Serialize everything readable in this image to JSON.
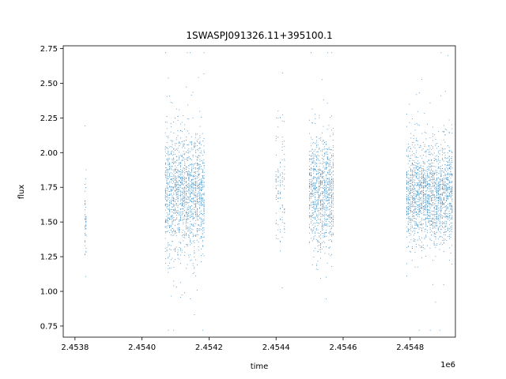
{
  "chart_data": {
    "type": "scatter",
    "title": "1SWASPJ091326.11+395100.1",
    "xlabel": "time",
    "ylabel": "flux",
    "x_offset_label": "1e6",
    "xlim": [
      2453765,
      2454935
    ],
    "ylim": [
      0.67,
      2.77
    ],
    "x_ticks": [
      2453800,
      2454000,
      2454200,
      2454400,
      2454600,
      2454800
    ],
    "x_tick_labels": [
      "2.4538",
      "2.4540",
      "2.4542",
      "2.4544",
      "2.4546",
      "2.4548"
    ],
    "y_ticks": [
      0.75,
      1.0,
      1.25,
      1.5,
      1.75,
      2.0,
      2.25,
      2.5,
      2.75
    ],
    "y_tick_labels": [
      "0.75",
      "1.00",
      "1.25",
      "1.50",
      "1.75",
      "2.00",
      "2.25",
      "2.50",
      "2.75"
    ],
    "grid": false,
    "marker_color": "#1f77b4",
    "observing_seasons": [
      {
        "x_start": 2453830,
        "x_end": 2453833,
        "y_center": 1.55,
        "y_spread": 0.18,
        "density": "low"
      },
      {
        "x_start": 2454070,
        "x_end": 2454185,
        "y_center": 1.7,
        "y_spread": 0.22,
        "density": "high"
      },
      {
        "x_start": 2454400,
        "x_end": 2454425,
        "y_center": 1.75,
        "y_spread": 0.2,
        "density": "low"
      },
      {
        "x_start": 2454500,
        "x_end": 2454570,
        "y_center": 1.72,
        "y_spread": 0.2,
        "density": "high"
      },
      {
        "x_start": 2454790,
        "x_end": 2454925,
        "y_center": 1.7,
        "y_spread": 0.18,
        "density": "high"
      }
    ]
  }
}
